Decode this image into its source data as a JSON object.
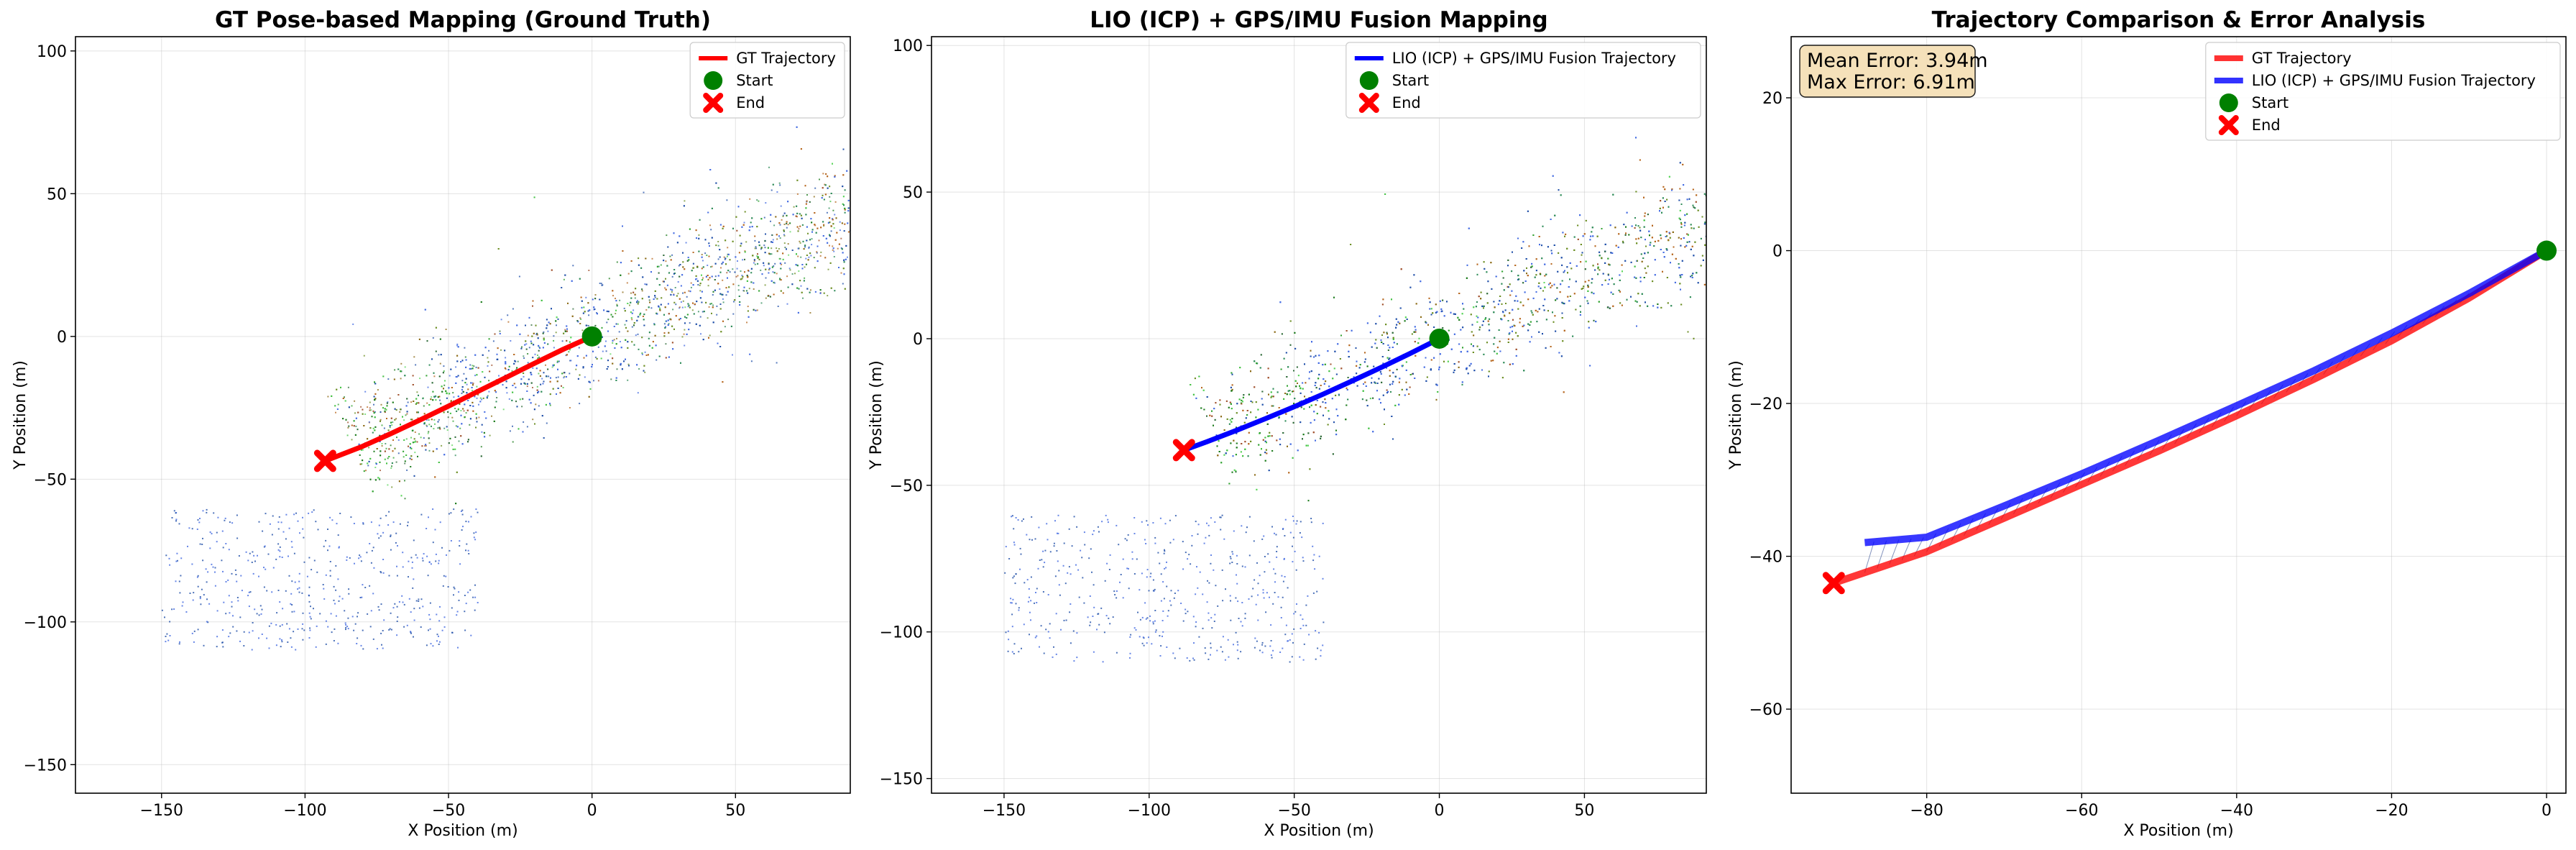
{
  "colors": {
    "gt": "#ff0000",
    "lio": "#0000ff",
    "start": "#008000",
    "end": "#ff0000",
    "error_box": "#f5deb3",
    "hatch": "#1f3c88"
  },
  "chart_data": [
    {
      "type": "scatter",
      "title": "GT Pose-based Mapping (Ground Truth)",
      "xlabel": "X Position (m)",
      "ylabel": "Y Position (m)",
      "xlim": [
        -180,
        90
      ],
      "ylim": [
        -160,
        105
      ],
      "xticks": [
        -150,
        -100,
        -50,
        0,
        50
      ],
      "yticks": [
        -150,
        -100,
        -50,
        0,
        50,
        100
      ],
      "grid": true,
      "legend_position": "top-right",
      "legend": [
        "GT Trajectory",
        "Start",
        "End"
      ],
      "series": [
        {
          "name": "GT Trajectory",
          "x": [
            0,
            -10,
            -20,
            -30,
            -40,
            -50,
            -60,
            -70,
            -80,
            -93
          ],
          "y": [
            0,
            -4.5,
            -9.4,
            -14.4,
            -19.4,
            -24.4,
            -29.3,
            -34,
            -38.5,
            -43.6
          ]
        }
      ],
      "start": [
        0,
        0
      ],
      "end": [
        -93,
        -43.6
      ]
    },
    {
      "type": "scatter",
      "title": "LIO (ICP) + GPS/IMU Fusion Mapping",
      "xlabel": "X Position (m)",
      "ylabel": "Y Position (m)",
      "xlim": [
        -175,
        92
      ],
      "ylim": [
        -155,
        103
      ],
      "xticks": [
        -150,
        -100,
        -50,
        0,
        50
      ],
      "yticks": [
        -150,
        -100,
        -50,
        0,
        50,
        100
      ],
      "grid": true,
      "legend_position": "top-right",
      "legend": [
        "LIO (ICP) + GPS/IMU Fusion Trajectory",
        "Start",
        "End"
      ],
      "series": [
        {
          "name": "LIO (ICP) + GPS/IMU Fusion Trajectory",
          "x": [
            0,
            -10,
            -20,
            -30,
            -40,
            -50,
            -60,
            -70,
            -80,
            -88
          ],
          "y": [
            0,
            -5,
            -9.8,
            -14.4,
            -18.9,
            -23.2,
            -27.3,
            -31.3,
            -35.1,
            -38
          ]
        }
      ],
      "start": [
        0,
        0
      ],
      "end": [
        -88,
        -38
      ]
    },
    {
      "type": "line",
      "title": "Trajectory Comparison & Error Analysis",
      "xlabel": "X Position (m)",
      "ylabel": "Y Position (m)",
      "xlim": [
        -97.5,
        2.5
      ],
      "ylim": [
        -71,
        28
      ],
      "xticks": [
        -80,
        -60,
        -40,
        -20,
        0
      ],
      "yticks": [
        -60,
        -40,
        -20,
        0,
        20
      ],
      "grid": true,
      "legend_position": "top-right",
      "legend": [
        "GT Trajectory",
        "LIO (ICP) + GPS/IMU Fusion Trajectory",
        "Start",
        "End"
      ],
      "series": [
        {
          "name": "GT Trajectory",
          "x": [
            0,
            -10,
            -20,
            -30,
            -40,
            -50,
            -60,
            -70,
            -80,
            -92
          ],
          "y": [
            0,
            -6.2,
            -11.8,
            -16.8,
            -21.6,
            -26.2,
            -30.6,
            -35,
            -39.4,
            -43.5
          ]
        },
        {
          "name": "LIO (ICP) + GPS/IMU Fusion Trajectory",
          "x": [
            0,
            -10,
            -20,
            -30,
            -40,
            -50,
            -60,
            -70,
            -80,
            -88
          ],
          "y": [
            0,
            -5.6,
            -10.8,
            -15.7,
            -20.3,
            -24.8,
            -29.2,
            -33.4,
            -37.5,
            -38.2
          ]
        }
      ],
      "start": [
        0,
        0
      ],
      "end": [
        -92,
        -43.5
      ],
      "annotation": [
        "Mean Error: 3.94m",
        "Max Error: 6.91m"
      ]
    }
  ]
}
